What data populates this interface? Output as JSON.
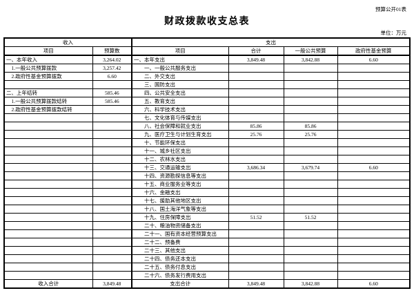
{
  "page": {
    "doc_label": "预算公开01表",
    "title": "财政拨款收支总表",
    "unit_label": "单位：万元"
  },
  "table": {
    "section_headers": {
      "income": "收入",
      "expense": "支出"
    },
    "column_headers": [
      "项目",
      "预算数",
      "项目",
      "合计",
      "一般公共预算",
      "政府性基金预算"
    ],
    "rows": [
      [
        "一、本年收入",
        "3,264.02",
        "一、本年支出",
        "3,849.48",
        "3,842.88",
        "6.60"
      ],
      [
        "　1.一般公共预算拨款",
        "3,257.42",
        "　　一、一般公共服务支出",
        "",
        "",
        ""
      ],
      [
        "　2.政府性基金预算拨款",
        "6.60",
        "　　二、外交支出",
        "",
        "",
        ""
      ],
      [
        "",
        "",
        "　　三、国防支出",
        "",
        "",
        ""
      ],
      [
        "二、上年结转",
        "585.46",
        "　　四、公共安全支出",
        "",
        "",
        ""
      ],
      [
        "　1.一般公共预算拨款结转",
        "585.46",
        "　　五、教育支出",
        "",
        "",
        ""
      ],
      [
        "　2.政府性基金预算拨款结转",
        "",
        "　　六、科学技术支出",
        "",
        "",
        ""
      ],
      [
        "",
        "",
        "　　七、文化体育与传媒支出",
        "",
        "",
        ""
      ],
      [
        "",
        "",
        "　　八、社会保障和就业支出",
        "85.86",
        "85.86",
        ""
      ],
      [
        "",
        "",
        "　　九、医疗卫生与计划生育支出",
        "25.76",
        "25.76",
        ""
      ],
      [
        "",
        "",
        "　　十、节能环保支出",
        "",
        "",
        ""
      ],
      [
        "",
        "",
        "　　十一、城乡社区支出",
        "",
        "",
        ""
      ],
      [
        "",
        "",
        "　　十二、农林水支出",
        "",
        "",
        ""
      ],
      [
        "",
        "",
        "　　十三、交通运输支出",
        "3,686.34",
        "3,679.74",
        "6.60"
      ],
      [
        "",
        "",
        "　　十四、资源勘探信息等支出",
        "",
        "",
        ""
      ],
      [
        "",
        "",
        "　　十五、商业服务业等支出",
        "",
        "",
        ""
      ],
      [
        "",
        "",
        "　　十六、金融支出",
        "",
        "",
        ""
      ],
      [
        "",
        "",
        "　　十七、援助其他地区支出",
        "",
        "",
        ""
      ],
      [
        "",
        "",
        "　　十八、国土海洋气象等支出",
        "",
        "",
        ""
      ],
      [
        "",
        "",
        "　　十九、住房保障支出",
        "51.52",
        "51.52",
        ""
      ],
      [
        "",
        "",
        "　　二十、粮油物资储备支出",
        "",
        "",
        ""
      ],
      [
        "",
        "",
        "　　二十一、国有资本经营预算支出",
        "",
        "",
        ""
      ],
      [
        "",
        "",
        "　　二十二、预备费",
        "",
        "",
        ""
      ],
      [
        "",
        "",
        "　　二十三、其他支出",
        "",
        "",
        ""
      ],
      [
        "",
        "",
        "　　二十四、债务还本支出",
        "",
        "",
        ""
      ],
      [
        "",
        "",
        "　　二十五、债务付息支出",
        "",
        "",
        ""
      ],
      [
        "",
        "",
        "　　二十六、债务发行费用支出",
        "",
        "",
        ""
      ]
    ],
    "total_row": [
      "收入合计",
      "3,849.48",
      "支出合计",
      "3,849.48",
      "3,842.88",
      "6.60"
    ]
  }
}
